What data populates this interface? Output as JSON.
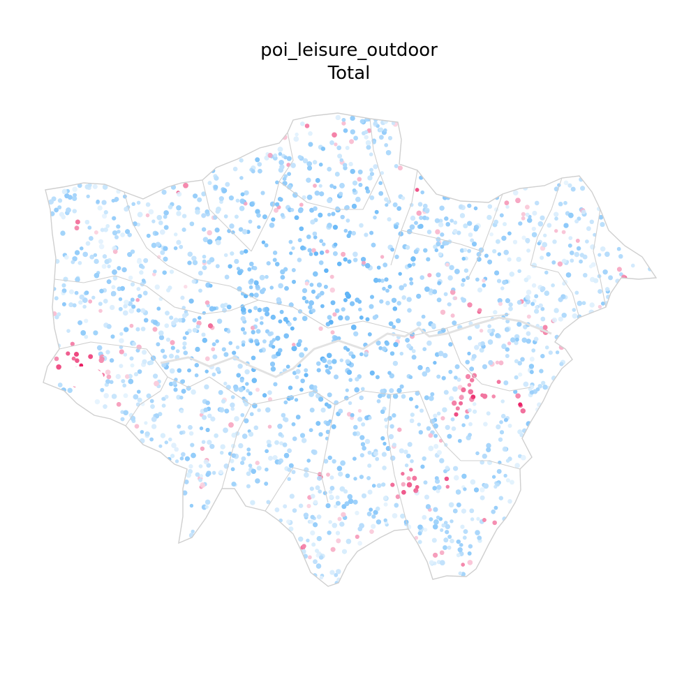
{
  "figure": {
    "title": "poi_leisure_outdoor",
    "subtitle": "Total"
  },
  "map_style": {
    "background": "#ffffff",
    "boundary_color": "#cfcfcf",
    "low_color": "#2196f3",
    "mid_color": "#ffffff",
    "high_color": "#e91e63"
  }
}
